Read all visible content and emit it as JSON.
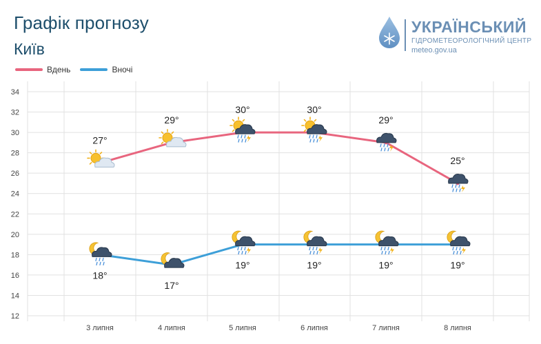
{
  "header": {
    "title": "Графік прогнозу",
    "city": "Київ"
  },
  "logo": {
    "name": "УКРАЇНСЬКИЙ",
    "subtitle": "ГІДРОМЕТЕОРОЛОГІЧНИЙ ЦЕНТР",
    "site": "meteo.gov.ua",
    "icon": "raindrop-snowflake-icon"
  },
  "colors": {
    "day": "#e8657e",
    "night": "#3d9fd8",
    "grid": "#dddddd",
    "text": "#1d4e6b"
  },
  "chart_data": {
    "type": "line",
    "categories": [
      "3 липня",
      "4 липня",
      "5 липня",
      "6 липня",
      "7 липня",
      "8 липня"
    ],
    "series": [
      {
        "name": "Вдень",
        "values": [
          27,
          29,
          30,
          30,
          29,
          25
        ],
        "labels": [
          "27°",
          "29°",
          "30°",
          "30°",
          "29°",
          "25°"
        ],
        "icons": [
          "sun-cloud-icon",
          "sun-cloud-icon",
          "sun-thunderstorm-rain-icon",
          "sun-thunderstorm-rain-icon",
          "thunderstorm-rain-icon",
          "thunderstorm-rain-icon"
        ]
      },
      {
        "name": "Вночі",
        "values": [
          18,
          17,
          19,
          19,
          19,
          19
        ],
        "labels": [
          "18°",
          "17°",
          "19°",
          "19°",
          "19°",
          "19°"
        ],
        "icons": [
          "moon-cloud-rain-icon",
          "moon-cloud-icon",
          "moon-thunderstorm-rain-icon",
          "moon-thunderstorm-rain-icon",
          "moon-thunderstorm-rain-icon",
          "moon-thunderstorm-rain-icon"
        ]
      }
    ],
    "yticks": [
      "12",
      "14",
      "16",
      "18",
      "20",
      "22",
      "24",
      "26",
      "28",
      "30",
      "32",
      "34"
    ],
    "ylim": [
      12,
      34
    ],
    "grid": true,
    "legend": "top-left"
  }
}
